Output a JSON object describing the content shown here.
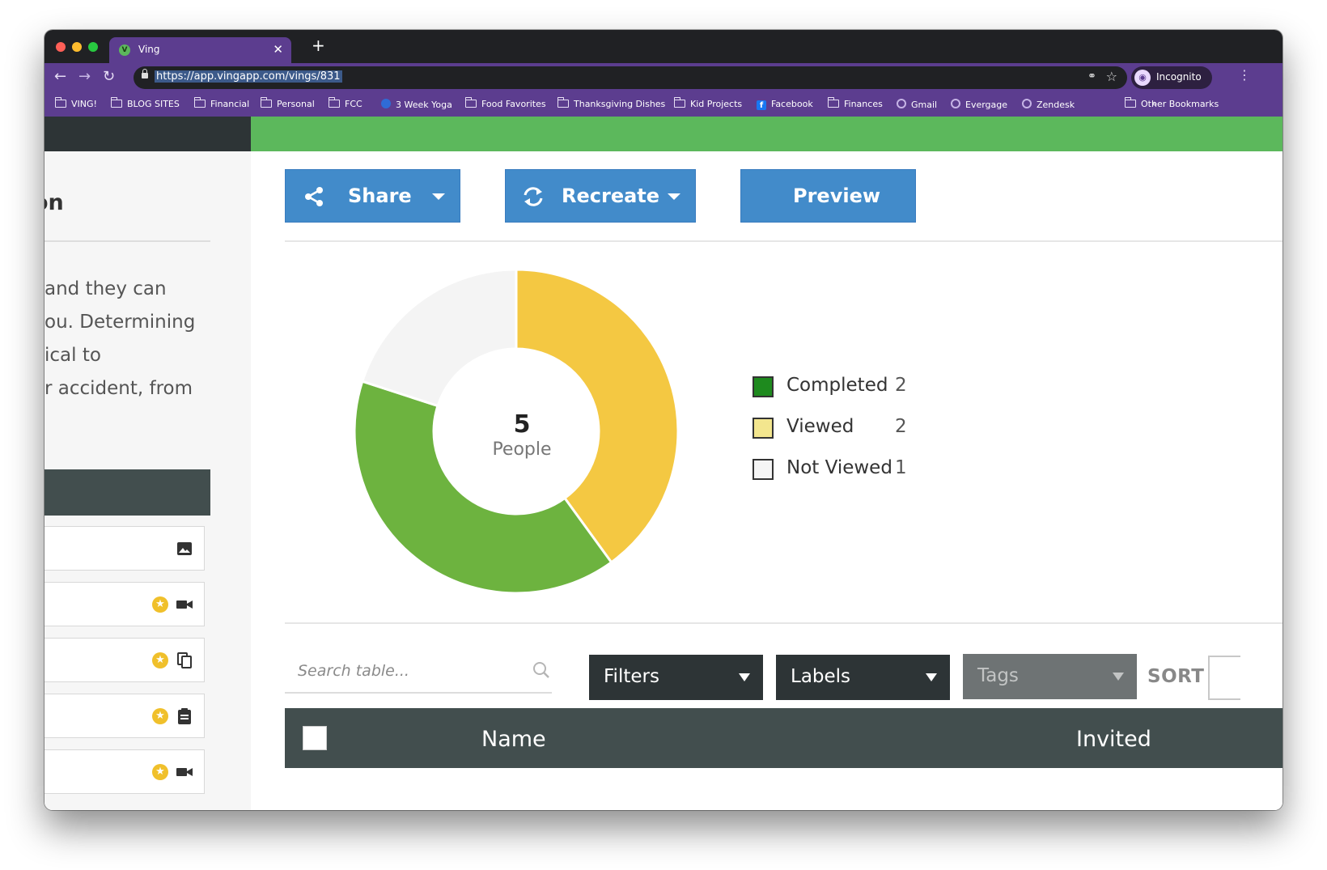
{
  "browser": {
    "tab_title": "Ving",
    "tab_favicon": "V",
    "close_glyph": "✕",
    "newtab_glyph": "+",
    "url": "https://app.vingapp.com/vings/831",
    "profile_label": "Incognito",
    "bookmarks": [
      {
        "label": "VING!",
        "icon": "folder-icon"
      },
      {
        "label": "BLOG SITES",
        "icon": "folder-icon"
      },
      {
        "label": "Financial",
        "icon": "folder-icon"
      },
      {
        "label": "Personal",
        "icon": "folder-icon"
      },
      {
        "label": "FCC",
        "icon": "folder-icon"
      },
      {
        "label": "3 Week Yoga",
        "icon": "globe-icon"
      },
      {
        "label": "Food Favorites",
        "icon": "folder-icon"
      },
      {
        "label": "Thanksgiving Dishes",
        "icon": "folder-icon"
      },
      {
        "label": "Kid Projects",
        "icon": "folder-icon"
      },
      {
        "label": "Facebook",
        "icon": "facebook-icon"
      },
      {
        "label": "Finances",
        "icon": "folder-icon"
      },
      {
        "label": "Gmail",
        "icon": "site-icon"
      },
      {
        "label": "Evergage",
        "icon": "site-icon"
      },
      {
        "label": "Zendesk",
        "icon": "site-icon"
      }
    ],
    "bookmarks_more": "»",
    "other_bookmarks": "Other Bookmarks"
  },
  "left_pane": {
    "heading_fragment": "on",
    "text_lines": [
      "and they can",
      "ou. Determining",
      "ical to",
      "r accident, from"
    ],
    "items": [
      {
        "type_icon": "image-icon",
        "starred": false
      },
      {
        "type_icon": "video-icon",
        "starred": true
      },
      {
        "type_icon": "copy-icon",
        "starred": true
      },
      {
        "type_icon": "clipboard-icon",
        "starred": true
      },
      {
        "type_icon": "video-icon",
        "starred": true
      }
    ]
  },
  "actions": {
    "share_label": "Share",
    "recreate_label": "Recreate",
    "preview_label": "Preview"
  },
  "chart_data": {
    "type": "pie",
    "categories": [
      "Completed",
      "Viewed",
      "Not Viewed"
    ],
    "values": [
      2,
      2,
      1
    ],
    "colors": [
      "#6db33f",
      "#f4c842",
      "#f4f4f4"
    ],
    "center_value": "5",
    "center_label": "People"
  },
  "legend": [
    {
      "label": "Completed",
      "count": "2",
      "color": "#1e8a1e"
    },
    {
      "label": "Viewed",
      "count": "2",
      "color": "#f3e68e"
    },
    {
      "label": "Not Viewed",
      "count": "1",
      "color": "#f5f5f5"
    }
  ],
  "table_controls": {
    "search_placeholder": "Search table...",
    "filters_label": "Filters",
    "labels_label": "Labels",
    "tags_label": "Tags",
    "sort_label": "SORT"
  },
  "table": {
    "columns": [
      "Name",
      "Invited"
    ]
  },
  "colors": {
    "browser_accent": "#5c3d8f",
    "brand_green": "#5cb85c",
    "button_blue": "#428bca",
    "header_dark": "#424e4e"
  }
}
